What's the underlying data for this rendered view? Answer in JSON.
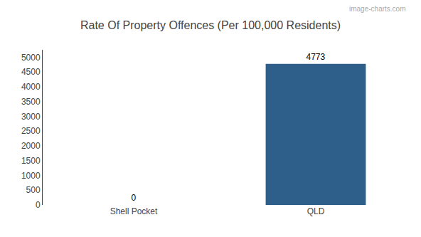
{
  "chart_data": {
    "type": "bar",
    "title": "Rate Of Property Offences (Per 100,000 Residents)",
    "categories": [
      "Shell Pocket",
      "QLD"
    ],
    "values": [
      0,
      4773
    ],
    "color": "#2e5f8a",
    "ylim": [
      0,
      5250
    ],
    "yticks": [
      0,
      500,
      1000,
      1500,
      2000,
      2500,
      3000,
      3500,
      4000,
      4500,
      5000
    ],
    "data_labels": true,
    "grid": false,
    "annotations": [
      "image-charts.com"
    ]
  }
}
